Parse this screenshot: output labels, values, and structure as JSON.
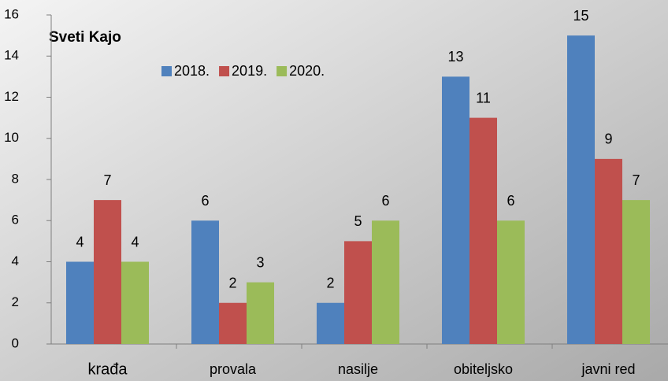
{
  "chart_data": {
    "type": "bar",
    "title": "Sveti Kajo",
    "categories": [
      "krađa",
      "provala",
      "nasilje",
      "obiteljsko",
      "javni red"
    ],
    "series": [
      {
        "name": "2018.",
        "color": "#4f81bd",
        "values": [
          4,
          6,
          2,
          13,
          15
        ]
      },
      {
        "name": "2019.",
        "color": "#c0504d",
        "values": [
          7,
          2,
          5,
          11,
          9
        ]
      },
      {
        "name": "2020.",
        "color": "#9bbb59",
        "values": [
          4,
          3,
          6,
          6,
          7
        ]
      }
    ],
    "ylim": [
      0,
      16
    ],
    "yticks": [
      0,
      2,
      4,
      6,
      8,
      10,
      12,
      14,
      16
    ],
    "legend": "top"
  }
}
